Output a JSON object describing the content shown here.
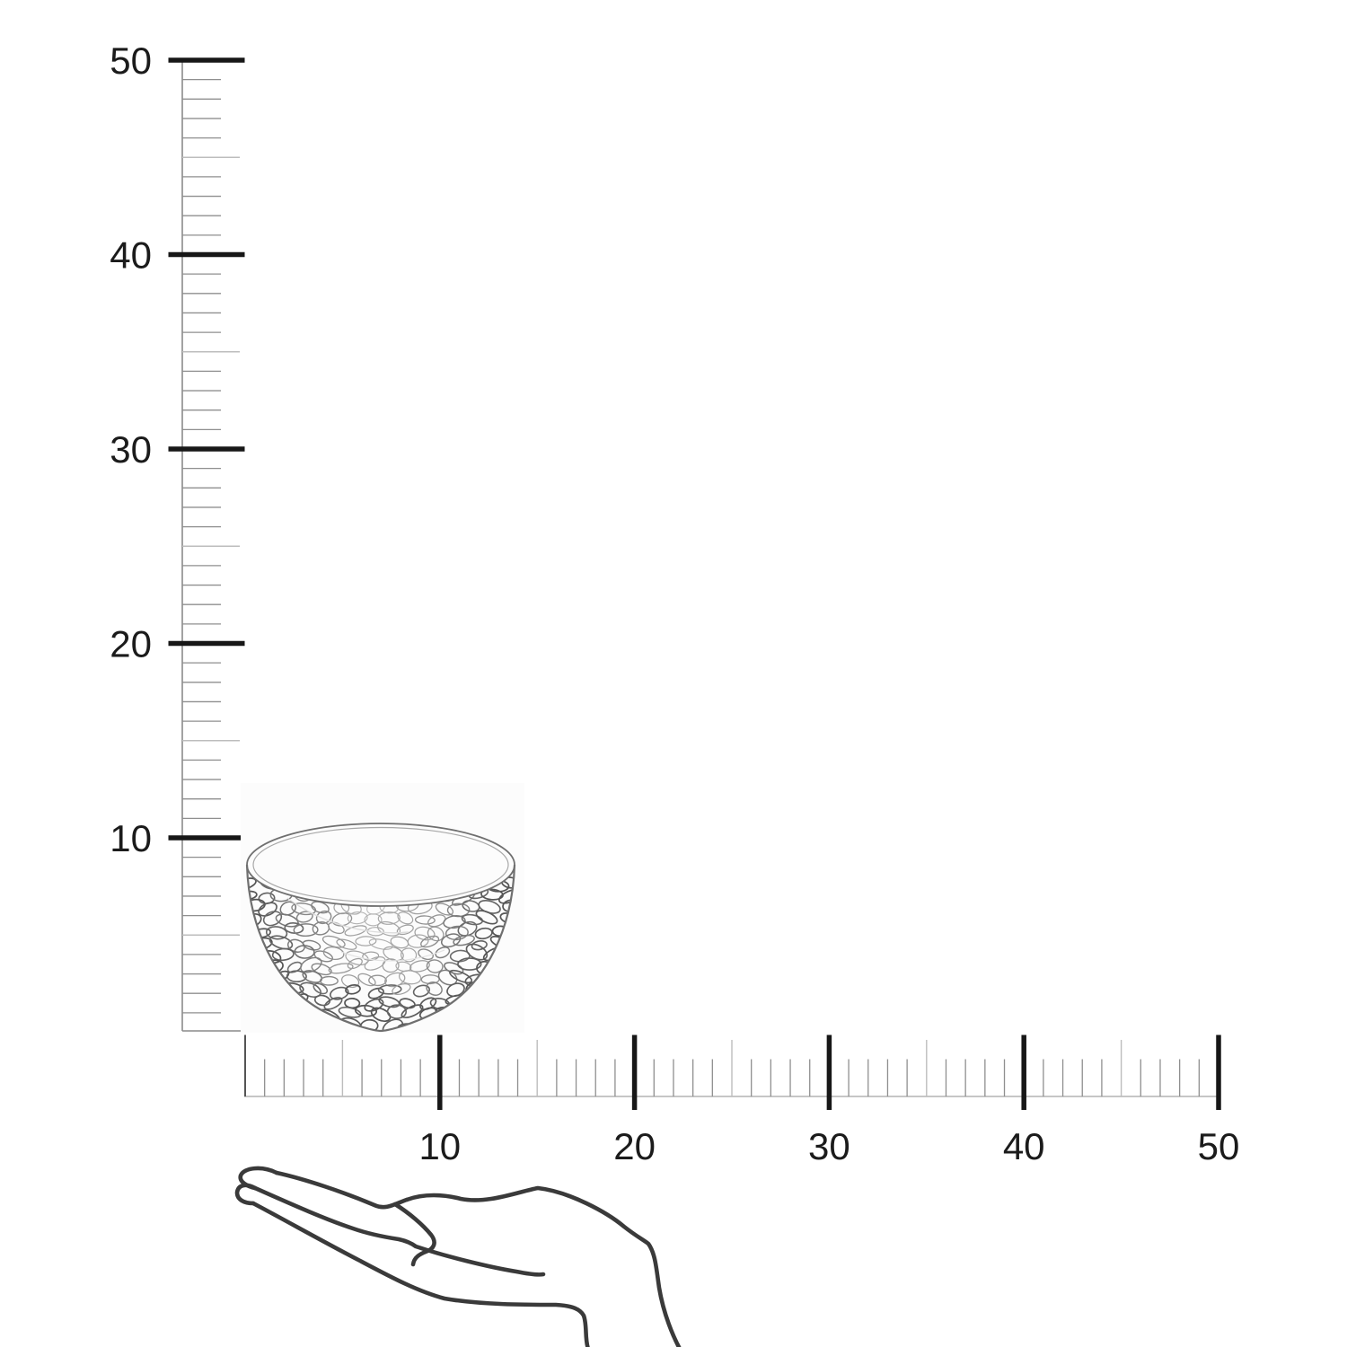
{
  "diagram": {
    "type": "product-size-ruler-diagram",
    "rulers": {
      "vertical": {
        "labels": [
          "10",
          "20",
          "30",
          "40",
          "50"
        ],
        "values": [
          10,
          20,
          30,
          40,
          50
        ],
        "min": 0,
        "max": 50,
        "minor_step": 1,
        "mid_step": 5,
        "major_step": 10
      },
      "horizontal": {
        "labels": [
          "10",
          "20",
          "30",
          "40",
          "50"
        ],
        "values": [
          10,
          20,
          30,
          40,
          50
        ],
        "min": 0,
        "max": 50,
        "minor_step": 1,
        "mid_step": 5,
        "major_step": 10
      }
    },
    "object": {
      "label": "hammered-glass-bowl",
      "width_units": 13.8,
      "height_units": 10.7
    },
    "scale_reference": {
      "label": "open-hand"
    },
    "colors": {
      "background": "#ffffff",
      "photo_background": "#fcfcfc",
      "axis": "#8a8a8a",
      "baseline": "#b3b3b3",
      "minor_tick": "#8f8f8f",
      "mid_tick": "#bdbdbd",
      "major_tick": "#171717",
      "zero_tick": "#555555",
      "label": "#1b1b1b",
      "bowl_stroke": "#6f6f6f",
      "bowl_rim_inner": "#a8a8a8",
      "hand_stroke": "#3a3a3a"
    }
  }
}
